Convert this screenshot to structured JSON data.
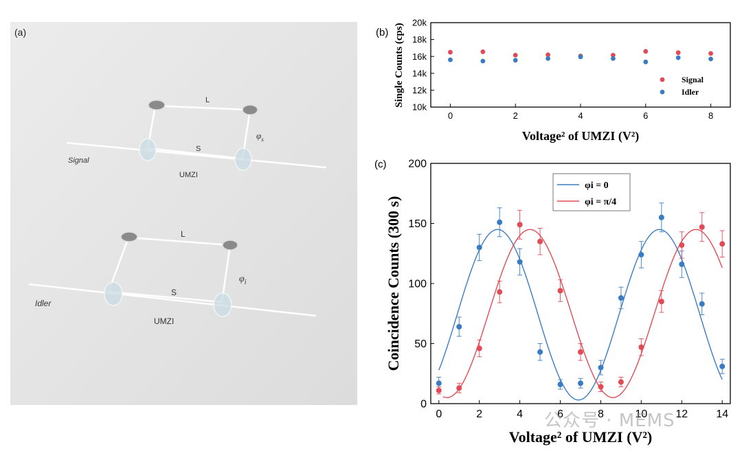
{
  "panel_a": {
    "label": "(a)",
    "top": {
      "name": "Signal",
      "unit": "UMZI",
      "long_arm": "L",
      "short_arm": "S",
      "phase": "φ",
      "phase_sub": "s"
    },
    "bottom": {
      "name": "Idler",
      "unit": "UMZI",
      "long_arm": "L",
      "short_arm": "S",
      "phase": "φ",
      "phase_sub": "i"
    }
  },
  "chart_data": [
    {
      "panel": "(b)",
      "type": "scatter",
      "title": "",
      "xlabel": "Voltage² of UMZI (V²)",
      "ylabel": "Single Counts (cps)",
      "xlim": [
        -0.6,
        8.6
      ],
      "ylim": [
        10000,
        20000
      ],
      "xticks": [
        0,
        2,
        4,
        6,
        8
      ],
      "yticks": [
        10000,
        12000,
        14000,
        16000,
        18000,
        20000
      ],
      "ytick_labels": [
        "10k",
        "12k",
        "14k",
        "16k",
        "18k",
        "20k"
      ],
      "legend": "bottom-right",
      "series": [
        {
          "name": "Signal",
          "color": "#e04b55",
          "x": [
            0,
            1,
            2,
            3,
            4,
            5,
            6,
            7,
            8
          ],
          "y": [
            16500,
            16550,
            16150,
            16200,
            16050,
            16150,
            16600,
            16450,
            16350
          ]
        },
        {
          "name": "Idler",
          "color": "#3a7cc4",
          "x": [
            0,
            1,
            2,
            3,
            4,
            5,
            6,
            7,
            8
          ],
          "y": [
            15600,
            15450,
            15550,
            15750,
            15950,
            15750,
            15350,
            15850,
            15700
          ]
        }
      ]
    },
    {
      "panel": "(c)",
      "type": "scatter",
      "title": "",
      "xlabel": "Voltage² of UMZI (V²)",
      "ylabel": "Coincidence Counts (300 s)",
      "xlim": [
        -0.4,
        14.4
      ],
      "ylim": [
        0,
        200
      ],
      "xticks": [
        0,
        2,
        4,
        6,
        8,
        10,
        12,
        14
      ],
      "yticks": [
        0,
        50,
        100,
        150,
        200
      ],
      "legend": "top-center",
      "series": [
        {
          "name": "φi = 0",
          "color": "#3a7cc4",
          "x": [
            0,
            1,
            2,
            3,
            4,
            5,
            6,
            7,
            8,
            9,
            10,
            11,
            12,
            13,
            14
          ],
          "y": [
            17,
            64,
            130,
            151,
            118,
            43,
            16,
            17,
            30,
            88,
            124,
            155,
            116,
            83,
            31
          ],
          "err": [
            5,
            8,
            11,
            12,
            11,
            7,
            4,
            4,
            6,
            9,
            11,
            12,
            11,
            9,
            6
          ],
          "fit": {
            "offset": 74,
            "amplitude": 71,
            "period": 8,
            "peak_x": 2.9,
            "x_start": 0,
            "x_end": 14
          }
        },
        {
          "name": "φi = π/4",
          "color": "#e04b55",
          "x": [
            0,
            1,
            2,
            3,
            4,
            5,
            6,
            7,
            8,
            9,
            10,
            11,
            12,
            13,
            14
          ],
          "y": [
            11,
            13,
            46,
            93,
            149,
            135,
            94,
            43,
            14,
            18,
            47,
            85,
            132,
            147,
            133
          ],
          "err": [
            3,
            4,
            7,
            9,
            12,
            11,
            9,
            7,
            4,
            4,
            7,
            9,
            11,
            12,
            11
          ],
          "fit": {
            "offset": 75,
            "amplitude": 70,
            "period": 8.2,
            "peak_x": 4.5,
            "x_start": 0.2,
            "x_end": 14
          }
        }
      ]
    }
  ],
  "watermark": "公众号 · MEMS"
}
